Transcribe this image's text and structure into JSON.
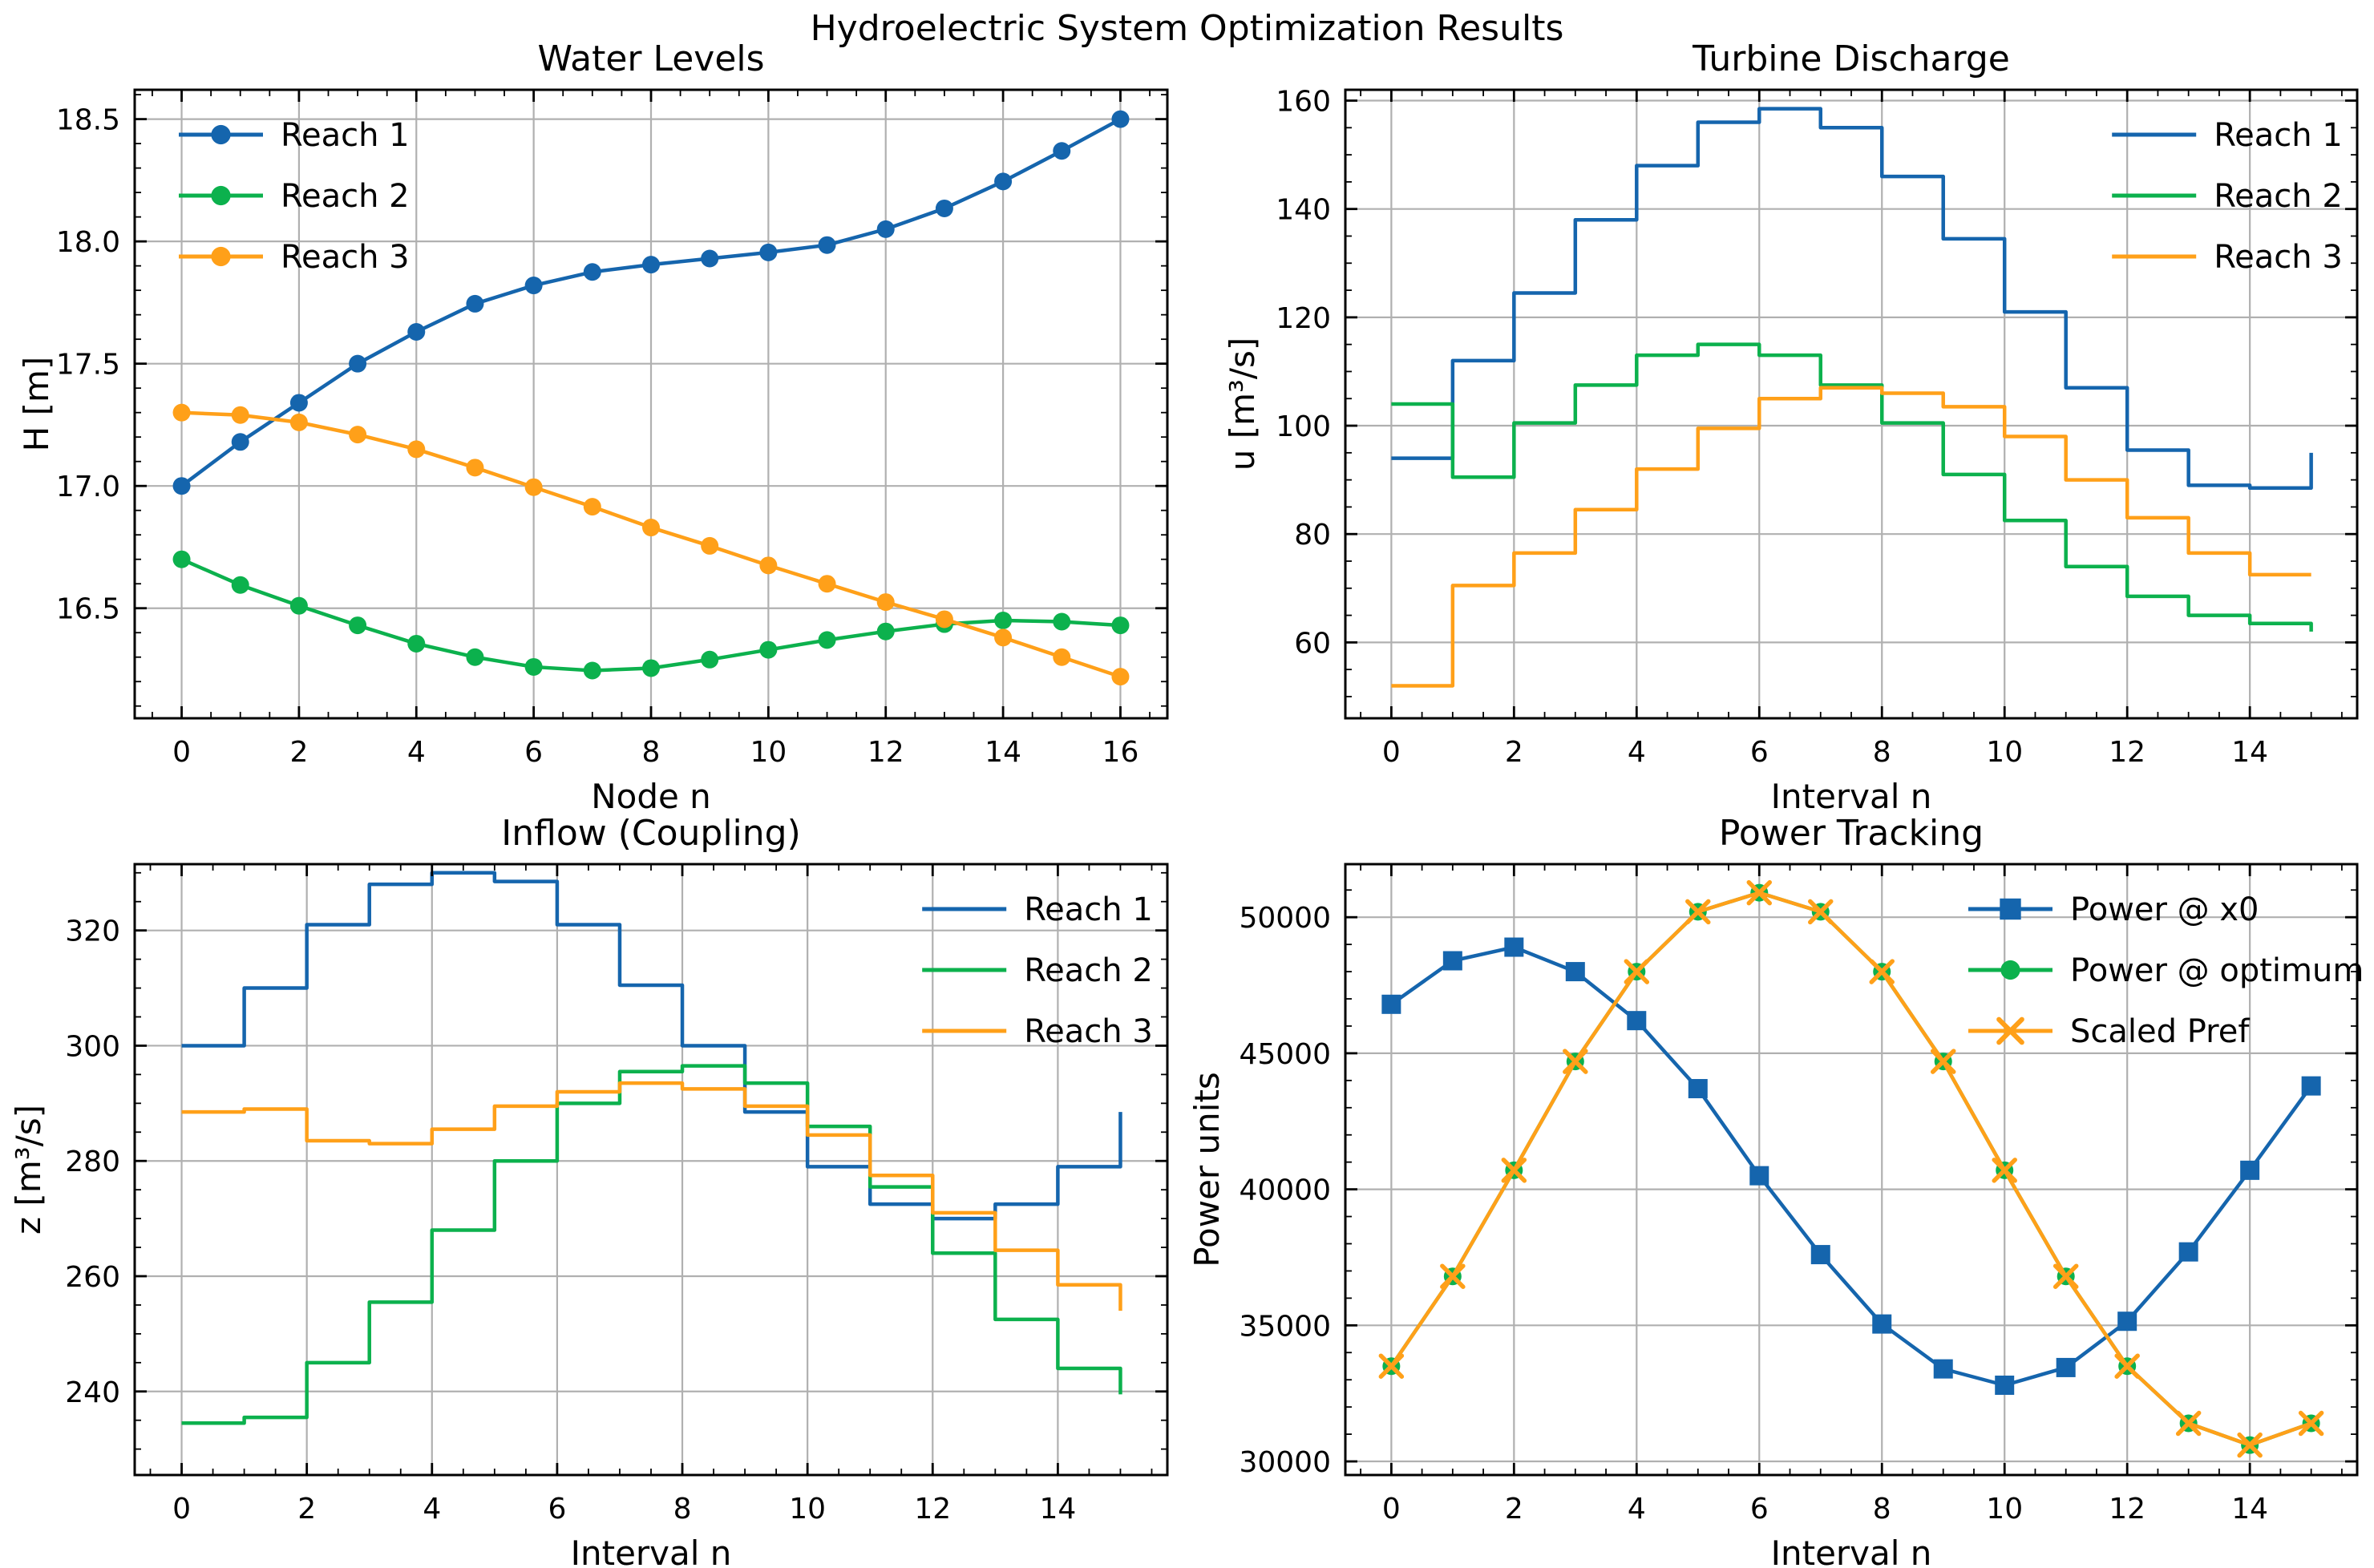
{
  "figure": {
    "title": "Hydroelectric System Optimization Results"
  },
  "palette": {
    "blue": "#1565ad",
    "green": "#0cb14d",
    "orange": "#ffa019",
    "grid": "#b0b0b0",
    "spine": "#000000"
  },
  "chart_data": [
    {
      "id": "water-levels",
      "type": "line",
      "title": "Water Levels",
      "xlabel": "Node n",
      "ylabel": "H [m]",
      "x": [
        0,
        1,
        2,
        3,
        4,
        5,
        6,
        7,
        8,
        9,
        10,
        11,
        12,
        13,
        14,
        15,
        16
      ],
      "series": [
        {
          "name": "Reach 1",
          "color": "#1565ad",
          "marker": "circle",
          "values": [
            17.0,
            17.18,
            17.34,
            17.5,
            17.63,
            17.745,
            17.82,
            17.875,
            17.905,
            17.93,
            17.955,
            17.985,
            18.05,
            18.135,
            18.245,
            18.37,
            18.5
          ]
        },
        {
          "name": "Reach 2",
          "color": "#0cb14d",
          "marker": "circle",
          "values": [
            16.7,
            16.595,
            16.51,
            16.43,
            16.355,
            16.3,
            16.26,
            16.245,
            16.255,
            16.29,
            16.33,
            16.37,
            16.405,
            16.435,
            16.45,
            16.445,
            16.43
          ]
        },
        {
          "name": "Reach 3",
          "color": "#ffa019",
          "marker": "circle",
          "values": [
            17.3,
            17.29,
            17.26,
            17.21,
            17.15,
            17.075,
            16.995,
            16.915,
            16.83,
            16.755,
            16.675,
            16.6,
            16.525,
            16.455,
            16.38,
            16.3,
            16.22
          ]
        }
      ],
      "xlim": [
        -0.8,
        16.8
      ],
      "ylim": [
        16.05,
        18.62
      ],
      "xticks": [
        0,
        2,
        4,
        6,
        8,
        10,
        12,
        14,
        16
      ],
      "xtick_labels": [
        "0",
        "2",
        "4",
        "6",
        "8",
        "10",
        "12",
        "14",
        "16"
      ],
      "yticks": [
        16.5,
        17.0,
        17.5,
        18.0,
        18.5
      ],
      "ytick_labels": [
        "16.5",
        "17.0",
        "17.5",
        "18.0",
        "18.5"
      ],
      "x_minor_step": 0.5,
      "y_minor_step": 0.1,
      "grid": true,
      "legend": {
        "loc": "upper-left",
        "show_markers": true
      }
    },
    {
      "id": "turbine-discharge",
      "type": "step",
      "title": "Turbine Discharge",
      "xlabel": "Interval n",
      "ylabel": "u [m³/s]",
      "x": [
        0,
        1,
        2,
        3,
        4,
        5,
        6,
        7,
        8,
        9,
        10,
        11,
        12,
        13,
        14,
        15
      ],
      "series": [
        {
          "name": "Reach 1",
          "color": "#1565ad",
          "marker": "none",
          "values": [
            94,
            112,
            124.5,
            138,
            148,
            156,
            158.5,
            155,
            146,
            134.5,
            121,
            107,
            95.5,
            89,
            88.5,
            95
          ]
        },
        {
          "name": "Reach 2",
          "color": "#0cb14d",
          "marker": "none",
          "values": [
            104,
            90.5,
            100.5,
            107.5,
            113,
            115,
            113,
            107.5,
            100.5,
            91,
            82.5,
            74,
            68.5,
            65,
            63.5,
            62
          ]
        },
        {
          "name": "Reach 3",
          "color": "#ffa019",
          "marker": "none",
          "values": [
            52,
            70.5,
            76.5,
            84.5,
            92,
            99.5,
            105,
            107,
            106,
            103.5,
            98,
            90,
            83,
            76.5,
            72.5,
            72.5
          ]
        }
      ],
      "xlim": [
        -0.75,
        15.75
      ],
      "ylim": [
        46,
        162
      ],
      "xticks": [
        0,
        2,
        4,
        6,
        8,
        10,
        12,
        14
      ],
      "xtick_labels": [
        "0",
        "2",
        "4",
        "6",
        "8",
        "10",
        "12",
        "14"
      ],
      "yticks": [
        60,
        80,
        100,
        120,
        140,
        160
      ],
      "ytick_labels": [
        "60",
        "80",
        "100",
        "120",
        "140",
        "160"
      ],
      "x_minor_step": 0.5,
      "y_minor_step": 5,
      "grid": true,
      "legend": {
        "loc": "upper-right",
        "show_markers": false
      }
    },
    {
      "id": "inflow-coupling",
      "type": "step",
      "title": "Inflow (Coupling)",
      "xlabel": "Interval n",
      "ylabel": "z [m³/s]",
      "x": [
        0,
        1,
        2,
        3,
        4,
        5,
        6,
        7,
        8,
        9,
        10,
        11,
        12,
        13,
        14,
        15
      ],
      "series": [
        {
          "name": "Reach 1",
          "color": "#1565ad",
          "marker": "none",
          "values": [
            300,
            310,
            321,
            328,
            330,
            328.5,
            321,
            310.5,
            300,
            288.5,
            279,
            272.5,
            270,
            272.5,
            279,
            288.5
          ]
        },
        {
          "name": "Reach 2",
          "color": "#0cb14d",
          "marker": "none",
          "values": [
            234.5,
            235.5,
            245,
            255.5,
            268,
            280,
            290,
            295.5,
            296.5,
            293.5,
            286,
            275.5,
            264,
            252.5,
            244,
            239.5
          ]
        },
        {
          "name": "Reach 3",
          "color": "#ffa019",
          "marker": "none",
          "values": [
            288.5,
            289,
            283.5,
            283,
            285.5,
            289.5,
            292,
            293.5,
            292.5,
            289.5,
            284.5,
            277.5,
            271,
            264.5,
            258.5,
            254
          ]
        }
      ],
      "xlim": [
        -0.75,
        15.75
      ],
      "ylim": [
        225.5,
        331.5
      ],
      "xticks": [
        0,
        2,
        4,
        6,
        8,
        10,
        12,
        14
      ],
      "xtick_labels": [
        "0",
        "2",
        "4",
        "6",
        "8",
        "10",
        "12",
        "14"
      ],
      "yticks": [
        240,
        260,
        280,
        300,
        320
      ],
      "ytick_labels": [
        "240",
        "260",
        "280",
        "300",
        "320"
      ],
      "x_minor_step": 0.5,
      "y_minor_step": 5,
      "grid": true,
      "legend": {
        "loc": "upper-right",
        "show_markers": false
      }
    },
    {
      "id": "power-tracking",
      "type": "line",
      "title": "Power Tracking",
      "xlabel": "Interval n",
      "ylabel": "Power units",
      "x": [
        0,
        1,
        2,
        3,
        4,
        5,
        6,
        7,
        8,
        9,
        10,
        11,
        12,
        13,
        14,
        15
      ],
      "series": [
        {
          "name": "Power @ x0",
          "color": "#1565ad",
          "marker": "square",
          "values": [
            46800,
            48400,
            48900,
            48000,
            46200,
            43700,
            40500,
            37600,
            35050,
            33400,
            32800,
            33450,
            35150,
            37700,
            40700,
            43800
          ]
        },
        {
          "name": "Power @ optimum",
          "color": "#0cb14d",
          "marker": "circle",
          "values": [
            33500,
            36800,
            40700,
            44700,
            48000,
            50200,
            50900,
            50200,
            48000,
            44700,
            40700,
            36800,
            33500,
            31400,
            30600,
            31400
          ]
        },
        {
          "name": "Scaled Pref",
          "color": "#ffa019",
          "marker": "x",
          "values": [
            33500,
            36800,
            40700,
            44700,
            48000,
            50200,
            50900,
            50200,
            48000,
            44700,
            40700,
            36800,
            33500,
            31400,
            30600,
            31400
          ]
        }
      ],
      "xlim": [
        -0.75,
        15.75
      ],
      "ylim": [
        29500,
        51950
      ],
      "xticks": [
        0,
        2,
        4,
        6,
        8,
        10,
        12,
        14
      ],
      "xtick_labels": [
        "0",
        "2",
        "4",
        "6",
        "8",
        "10",
        "12",
        "14"
      ],
      "yticks": [
        30000,
        35000,
        40000,
        45000,
        50000
      ],
      "ytick_labels": [
        "30000",
        "35000",
        "40000",
        "45000",
        "50000"
      ],
      "x_minor_step": 0.5,
      "y_minor_step": 1000,
      "grid": true,
      "legend": {
        "loc": "upper-right",
        "show_markers": true
      }
    }
  ]
}
